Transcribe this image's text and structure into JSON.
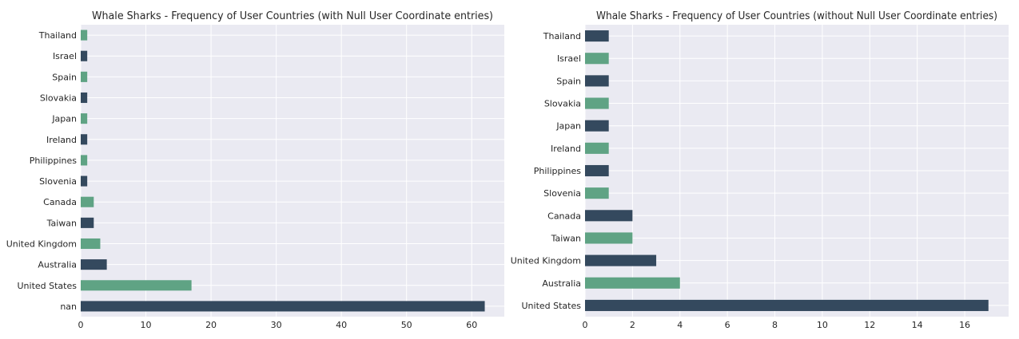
{
  "chart_data": [
    {
      "type": "bar",
      "orientation": "horizontal",
      "title": "Whale Sharks - Frequency of User Countries (with Null User Coordinate entries)",
      "categories": [
        "nan",
        "United States",
        "Australia",
        "United Kingdom",
        "Taiwan",
        "Canada",
        "Slovenia",
        "Philippines",
        "Ireland",
        "Japan",
        "Slovakia",
        "Spain",
        "Israel",
        "Thailand"
      ],
      "values": [
        62,
        17,
        4,
        3,
        2,
        2,
        1,
        1,
        1,
        1,
        1,
        1,
        1,
        1
      ],
      "xlim": [
        0,
        65
      ],
      "xticks": [
        0,
        10,
        20,
        30,
        40,
        50,
        60
      ],
      "xlabel": "",
      "ylabel": "",
      "grid": true,
      "colors": [
        "#34495e",
        "#5fa384"
      ]
    },
    {
      "type": "bar",
      "orientation": "horizontal",
      "title": "Whale Sharks - Frequency of User Countries (without Null User Coordinate entries)",
      "categories": [
        "United States",
        "Australia",
        "United Kingdom",
        "Taiwan",
        "Canada",
        "Slovenia",
        "Philippines",
        "Ireland",
        "Japan",
        "Slovakia",
        "Spain",
        "Israel",
        "Thailand"
      ],
      "values": [
        17,
        4,
        3,
        2,
        2,
        1,
        1,
        1,
        1,
        1,
        1,
        1,
        1
      ],
      "xlim": [
        0,
        17.85
      ],
      "xticks": [
        0,
        2,
        4,
        6,
        8,
        10,
        12,
        14,
        16
      ],
      "xlabel": "",
      "ylabel": "",
      "grid": true,
      "colors": [
        "#34495e",
        "#5fa384"
      ]
    }
  ]
}
